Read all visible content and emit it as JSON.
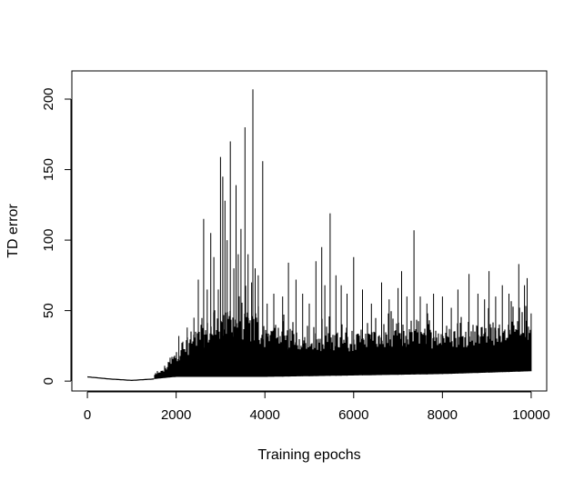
{
  "chart_data": {
    "type": "line",
    "title": "",
    "xlabel": "Training epochs",
    "ylabel": "TD error",
    "xlim": [
      -350,
      10350
    ],
    "ylim": [
      -7,
      220
    ],
    "x_ticks": [
      0,
      2000,
      4000,
      6000,
      8000,
      10000
    ],
    "x_tick_labels": [
      "0",
      "2000",
      "4000",
      "6000",
      "8000",
      "10000"
    ],
    "y_ticks": [
      0,
      50,
      100,
      150,
      200
    ],
    "y_tick_labels": [
      "0",
      "50",
      "100",
      "150",
      "200"
    ],
    "grid": false,
    "legend": "none",
    "series_color": "#000000",
    "series": [
      {
        "name": "",
        "n_points": 10000,
        "baseline": [
          [
            0,
            3
          ],
          [
            500,
            1.5
          ],
          [
            1000,
            0.5
          ],
          [
            1500,
            1.5
          ],
          [
            2000,
            3
          ],
          [
            3000,
            3
          ],
          [
            4000,
            3
          ],
          [
            6000,
            4
          ],
          [
            8000,
            5
          ],
          [
            10000,
            7
          ]
        ],
        "envelope": [
          [
            0,
            3
          ],
          [
            500,
            1.5
          ],
          [
            1000,
            1
          ],
          [
            1400,
            3
          ],
          [
            1700,
            8
          ],
          [
            2000,
            22
          ],
          [
            2400,
            35
          ],
          [
            2800,
            45
          ],
          [
            3200,
            50
          ],
          [
            3600,
            50
          ],
          [
            4000,
            40
          ],
          [
            5000,
            35
          ],
          [
            6000,
            35
          ],
          [
            7000,
            38
          ],
          [
            8000,
            38
          ],
          [
            9000,
            40
          ],
          [
            10000,
            45
          ]
        ],
        "peaks": [
          [
            2060,
            32
          ],
          [
            2150,
            28
          ],
          [
            2250,
            38
          ],
          [
            2400,
            45
          ],
          [
            2500,
            72
          ],
          [
            2620,
            115
          ],
          [
            2700,
            65
          ],
          [
            2780,
            105
          ],
          [
            2850,
            88
          ],
          [
            2950,
            65
          ],
          [
            3000,
            159
          ],
          [
            3050,
            145
          ],
          [
            3100,
            128
          ],
          [
            3150,
            100
          ],
          [
            3220,
            170
          ],
          [
            3300,
            80
          ],
          [
            3350,
            139
          ],
          [
            3400,
            90
          ],
          [
            3460,
            108
          ],
          [
            3550,
            180
          ],
          [
            3620,
            90
          ],
          [
            3700,
            70
          ],
          [
            3730,
            207
          ],
          [
            3780,
            80
          ],
          [
            3850,
            75
          ],
          [
            3950,
            156
          ],
          [
            4050,
            55
          ],
          [
            4200,
            62
          ],
          [
            4400,
            60
          ],
          [
            4530,
            84
          ],
          [
            4700,
            72
          ],
          [
            4850,
            62
          ],
          [
            5000,
            55
          ],
          [
            5150,
            85
          ],
          [
            5280,
            95
          ],
          [
            5350,
            68
          ],
          [
            5470,
            119
          ],
          [
            5600,
            75
          ],
          [
            5720,
            68
          ],
          [
            5850,
            62
          ],
          [
            6000,
            88
          ],
          [
            6200,
            65
          ],
          [
            6400,
            55
          ],
          [
            6630,
            70
          ],
          [
            6800,
            58
          ],
          [
            7000,
            66
          ],
          [
            7080,
            78
          ],
          [
            7200,
            60
          ],
          [
            7360,
            107
          ],
          [
            7500,
            60
          ],
          [
            7650,
            55
          ],
          [
            7800,
            62
          ],
          [
            8000,
            60
          ],
          [
            8200,
            52
          ],
          [
            8350,
            65
          ],
          [
            8600,
            76
          ],
          [
            8800,
            62
          ],
          [
            8950,
            58
          ],
          [
            9050,
            78
          ],
          [
            9200,
            60
          ],
          [
            9350,
            68
          ],
          [
            9500,
            62
          ],
          [
            9720,
            83
          ],
          [
            9850,
            68
          ],
          [
            9910,
            73
          ],
          [
            10000,
            48
          ]
        ]
      }
    ]
  }
}
